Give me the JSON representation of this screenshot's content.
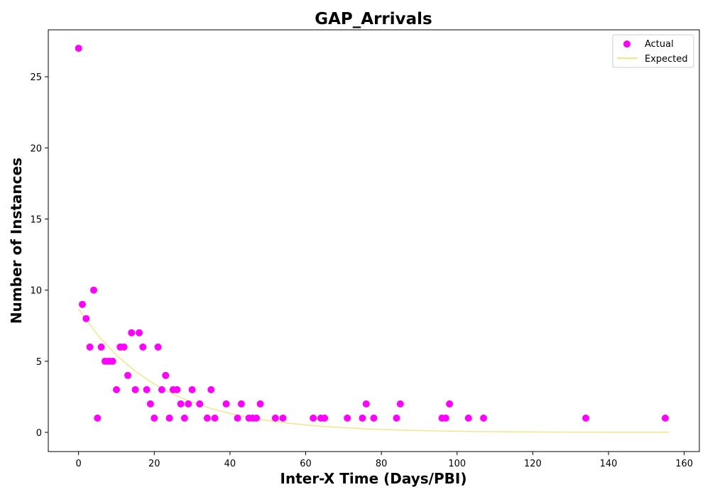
{
  "chart_data": {
    "type": "scatter",
    "title": "GAP_Arrivals",
    "xlabel": "Inter-X Time (Days/PBI)",
    "ylabel": "Number of Instances",
    "xlim": [
      -8,
      164
    ],
    "ylim": [
      -1.35,
      28.3
    ],
    "xticks": [
      0,
      20,
      40,
      60,
      80,
      100,
      120,
      140,
      160
    ],
    "yticks": [
      0,
      5,
      10,
      15,
      20,
      25
    ],
    "grid": false,
    "legend": {
      "position": "top-right",
      "entries": [
        "Actual",
        "Expected"
      ]
    },
    "series": [
      {
        "name": "Actual",
        "kind": "scatter",
        "color": "#ff00ff",
        "points": [
          [
            0,
            27
          ],
          [
            1,
            9
          ],
          [
            2,
            8
          ],
          [
            3,
            6
          ],
          [
            4,
            10
          ],
          [
            5,
            1
          ],
          [
            6,
            6
          ],
          [
            7,
            5
          ],
          [
            8,
            5
          ],
          [
            9,
            5
          ],
          [
            10,
            3
          ],
          [
            11,
            6
          ],
          [
            12,
            6
          ],
          [
            13,
            4
          ],
          [
            14,
            7
          ],
          [
            15,
            3
          ],
          [
            16,
            7
          ],
          [
            17,
            6
          ],
          [
            18,
            3
          ],
          [
            19,
            2
          ],
          [
            20,
            1
          ],
          [
            21,
            6
          ],
          [
            22,
            3
          ],
          [
            23,
            4
          ],
          [
            24,
            1
          ],
          [
            25,
            3
          ],
          [
            26,
            3
          ],
          [
            27,
            2
          ],
          [
            28,
            1
          ],
          [
            29,
            2
          ],
          [
            30,
            3
          ],
          [
            32,
            2
          ],
          [
            34,
            1
          ],
          [
            35,
            3
          ],
          [
            36,
            1
          ],
          [
            39,
            2
          ],
          [
            42,
            1
          ],
          [
            43,
            2
          ],
          [
            45,
            1
          ],
          [
            46,
            1
          ],
          [
            47,
            1
          ],
          [
            48,
            2
          ],
          [
            52,
            1
          ],
          [
            54,
            1
          ],
          [
            62,
            1
          ],
          [
            64,
            1
          ],
          [
            65,
            1
          ],
          [
            71,
            1
          ],
          [
            75,
            1
          ],
          [
            76,
            2
          ],
          [
            78,
            1
          ],
          [
            84,
            1
          ],
          [
            85,
            2
          ],
          [
            96,
            1
          ],
          [
            97,
            1
          ],
          [
            98,
            2
          ],
          [
            103,
            1
          ],
          [
            107,
            1
          ],
          [
            134,
            1
          ],
          [
            155,
            1
          ]
        ]
      },
      {
        "name": "Expected",
        "kind": "line",
        "color": "#f0e68c",
        "points": [
          [
            0,
            8.66
          ],
          [
            5,
            6.85
          ],
          [
            10,
            5.42
          ],
          [
            15,
            4.29
          ],
          [
            20,
            3.39
          ],
          [
            25,
            2.68
          ],
          [
            30,
            2.12
          ],
          [
            35,
            1.68
          ],
          [
            40,
            1.33
          ],
          [
            45,
            1.05
          ],
          [
            50,
            0.83
          ],
          [
            55,
            0.66
          ],
          [
            60,
            0.52
          ],
          [
            65,
            0.41
          ],
          [
            70,
            0.33
          ],
          [
            75,
            0.26
          ],
          [
            80,
            0.2
          ],
          [
            85,
            0.16
          ],
          [
            90,
            0.13
          ],
          [
            95,
            0.1
          ],
          [
            100,
            0.08
          ],
          [
            105,
            0.06
          ],
          [
            110,
            0.05
          ],
          [
            115,
            0.04
          ],
          [
            120,
            0.03
          ],
          [
            125,
            0.025
          ],
          [
            130,
            0.02
          ],
          [
            135,
            0.016
          ],
          [
            140,
            0.012
          ],
          [
            145,
            0.01
          ],
          [
            150,
            0.008
          ],
          [
            156,
            0.006
          ]
        ]
      }
    ]
  }
}
